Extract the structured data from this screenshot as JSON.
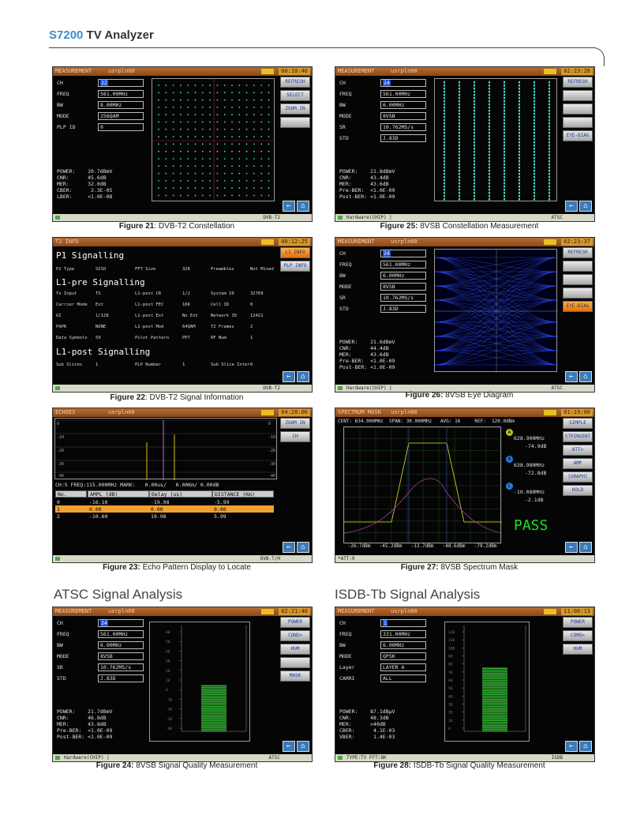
{
  "header": {
    "brand": "S7200",
    "title": "TV Analyzer"
  },
  "sections": {
    "atsc": "ATSC Signal Analysis",
    "isdb": "ISDB-Tb Signal Analysis"
  },
  "common": {
    "user": "usrpln00",
    "refresh": "REFRESH",
    "hw": "Hardware(CHIP) |"
  },
  "captions": {
    "f21": {
      "num": "Figure 21",
      "text": ": DVB-T2 Constellation"
    },
    "f25": {
      "num": "Figure 25:",
      "text": " 8VSB Constellation Measurement"
    },
    "f22": {
      "num": "Figure 22",
      "text": ": DVB-T2 Signal Information"
    },
    "f26": {
      "num": "Figure 26:",
      "text": " 8VSB Eye Diagram"
    },
    "f23": {
      "num": "Figure 23:",
      "text": " Echo Pattern Display to Locate"
    },
    "f27": {
      "num": "Figure 27:",
      "text": " 8VSB Spectrum Mask"
    },
    "f24": {
      "num": "Figure 24:",
      "text": " 8VSB Signal Quality Measurement"
    },
    "f28": {
      "num": "Figure 28:",
      "text": " ISDB-Tb Signal Quality Measurement"
    }
  },
  "s21": {
    "title": "MEASUREMENT",
    "time": "00:10:46",
    "std": "DVB-T2",
    "fields": [
      [
        "CH",
        "22"
      ],
      [
        "FREQ",
        "561.00MHz"
      ],
      [
        "BW",
        "8.00MHz"
      ],
      [
        "MODE",
        "256QAM"
      ],
      [
        "PLP ID",
        "0"
      ]
    ],
    "btns": [
      "REFRESH",
      "SELECT",
      "ZOOM IN"
    ],
    "meas": "POWER:    20.7dBmV\nCNR:      45.6dB\nMER:      32.0dB\nCBER:      2.3E-05\nLBER:     <1.0E-08"
  },
  "s25": {
    "title": "MEASUREMENT",
    "time": "02:23:28",
    "std": "ATSC",
    "fields": [
      [
        "CH",
        "24"
      ],
      [
        "FREQ",
        "561.00MHz"
      ],
      [
        "BW",
        "6.00MHz"
      ],
      [
        "MODE",
        "8VSB"
      ],
      [
        "SR",
        "10.762MS/s"
      ],
      [
        "STD",
        "J.83D"
      ]
    ],
    "btns": [
      "REFRESH",
      "EYE-DIAG"
    ],
    "meas": "POWER:    21.8dBmV\nCNR:      43.4dB\nMER:      43.6dB\nPre-BER:  <1.0E-09\nPost-BER: <1.0E-09"
  },
  "s22": {
    "title": "T2 INFO",
    "time": "00:12:25",
    "std": "DVB-T2",
    "btns": [
      "L1 INFO",
      "PLP INFO"
    ],
    "h1": "P1 Signalling",
    "h2": "L1-pre Signalling",
    "h3": "L1-post Signalling",
    "p1": [
      "P2 Type",
      "SISO",
      "FFT Size",
      "32K",
      "Preambles",
      "Not Mixed"
    ],
    "pre": [
      [
        "Tx Input",
        "TS",
        "L1-post CR",
        "1/2",
        "System ID",
        "32769"
      ],
      [
        "Carrier Mode",
        "Ext",
        "L1-post FEC",
        "16K",
        "Cell ID",
        "0"
      ],
      [
        "GI",
        "1/128",
        "L1-post Ext",
        "No Ext",
        "Network ID",
        "12421"
      ],
      [
        "PAPR",
        "NONE",
        "L1-post Mod",
        "64QAM",
        "T2 Frames",
        "2"
      ],
      [
        "Data Symbols",
        "59",
        "Pilot Pattern",
        "PP7",
        "RF Num",
        "1"
      ]
    ],
    "post": [
      "Sub Slices",
      "1",
      "PLP Number",
      "1",
      "Sub Slice Inter",
      "0"
    ]
  },
  "s26": {
    "title": "MEASUREMENT",
    "time": "02:23:37",
    "std": "ATSC",
    "fields": [
      [
        "CH",
        "24"
      ],
      [
        "FREQ",
        "561.00MHz"
      ],
      [
        "BW",
        "6.00MHz"
      ],
      [
        "MODE",
        "8VSB"
      ],
      [
        "SR",
        "10.762MS/s"
      ],
      [
        "STD",
        "J.83D"
      ]
    ],
    "btns": [
      "REFRESH",
      "EYE-DIAG"
    ],
    "meas": "POWER:    21.6dBmV\nCNR:      44.4dB\nMER:      43.6dB\nPre-BER:  <1.0E-09\nPost-BER: <1.0E-09"
  },
  "s23": {
    "title": "ECHOES",
    "time": "04:28:06",
    "std": "DVB-T/H",
    "btns": [
      "ZOOM IN",
      "CH"
    ],
    "info": "CH:5 FREQ:115.000MHz MARK:   0.00us/   0.00Km/ 0.00dB",
    "cols": [
      "No.",
      "AMPL (dB)",
      "Delay (us)",
      "DISTANCE (Km)"
    ],
    "rows": [
      [
        "0",
        "-16.10",
        "-19.98",
        "-5.99"
      ],
      [
        "1",
        "0.00",
        "0.00",
        "0.00"
      ],
      [
        "2",
        "-10.60",
        "19.98",
        "5.99"
      ]
    ],
    "yl": [
      "0",
      "-10",
      "-20",
      "-30",
      "-40"
    ]
  },
  "s27": {
    "title": "SPECTRUM MASK",
    "time": "01:19:00",
    "std": "*ATT:0",
    "top": "CENT: 634.000MHz  SPAN: 30.000MHz   AVG: 16     REF:  120.0dBm",
    "btns": [
      "SIMPLE",
      "STRINGENT",
      "ATT>",
      "AMP",
      "[GRAPH]",
      "HOLD"
    ],
    "marks": [
      [
        "A",
        "628.900MHz",
        "-74.9dB"
      ],
      [
        "B",
        "638.980MHz",
        "-72.8dB"
      ],
      [
        "C",
        "-10.080MHz",
        "-2.1dB"
      ]
    ],
    "pass": "PASS",
    "bottom": [
      " -26.7dBm",
      " -45.2dBm",
      " -13.7dBm",
      " -48.6dBm",
      " -79.2dBm"
    ]
  },
  "s24": {
    "title": "MEASUREMENT",
    "time": "02:21:40",
    "std": "ATSC",
    "fields": [
      [
        "CH",
        "24"
      ],
      [
        "FREQ",
        "561.00MHz"
      ],
      [
        "BW",
        "6.00MHz"
      ],
      [
        "MODE",
        "8VSB"
      ],
      [
        "SR",
        "10.762MS/s"
      ],
      [
        "STD",
        "J.83D"
      ]
    ],
    "btns": [
      "POWER",
      "CONS>",
      "HUM",
      "MASK"
    ],
    "meas": "POWER:    21.7dBmV\nCNR:      46.8dB\nMER:      43.8dB\nPre-BER:  <1.0E-09\nPost-BER: <1.0E-09",
    "bar_level": 0.45
  },
  "s28": {
    "title": "MEASUREMENT",
    "time": "11:06:13",
    "std": "ISDB",
    "sb": "TYPE:TV  FFT:8K",
    "fields": [
      [
        "CH",
        "1"
      ],
      [
        "FREQ",
        "331.00MHz"
      ],
      [
        "BW",
        "6.00MHz"
      ],
      [
        "MODE",
        "QPSK"
      ],
      [
        "Layer",
        "LAYER A"
      ],
      [
        "CARRI",
        "ALL"
      ]
    ],
    "btns": [
      "POWER",
      "CONS>",
      "HUM"
    ],
    "meas": "POWER:    87.1dBµV\nCNR:      48.3dB\nMER:      >40dB\nCBER:      4.1E-03\nVBER:      1.4E-03",
    "bar_level": 0.62
  }
}
